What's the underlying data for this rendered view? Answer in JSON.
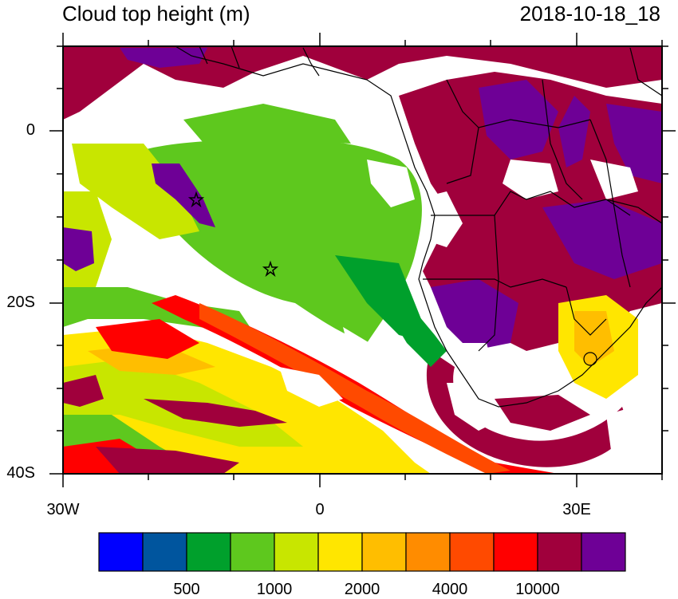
{
  "header": {
    "title": "Cloud top height (m)",
    "datetime": "2018-10-18_18"
  },
  "axes": {
    "lat_ticks": [
      {
        "label": "0",
        "value": 0
      },
      {
        "label": "20S",
        "value": -20
      },
      {
        "label": "40S",
        "value": -40
      }
    ],
    "lon_ticks": [
      {
        "label": "30W",
        "value": -30
      },
      {
        "label": "0",
        "value": 0
      },
      {
        "label": "30E",
        "value": 30
      }
    ],
    "lon_range": [
      -30,
      40
    ],
    "lat_range": [
      -40,
      10
    ]
  },
  "markers": [
    {
      "name": "star",
      "lon": -14.5,
      "lat": -8
    },
    {
      "name": "star",
      "lon": -5.7,
      "lat": -16
    }
  ],
  "colorbar": {
    "colors": [
      "#0000ff",
      "#00559e",
      "#00a02c",
      "#5ec81e",
      "#c8e600",
      "#ffe600",
      "#ffbe00",
      "#ff8c00",
      "#ff4a00",
      "#ff0000",
      "#a0003c",
      "#6e0096"
    ],
    "labels": [
      "500",
      "1000",
      "2000",
      "4000",
      "10000"
    ]
  },
  "colors": {
    "land_border": "#000000",
    "clear_sky": "#ffffff"
  }
}
